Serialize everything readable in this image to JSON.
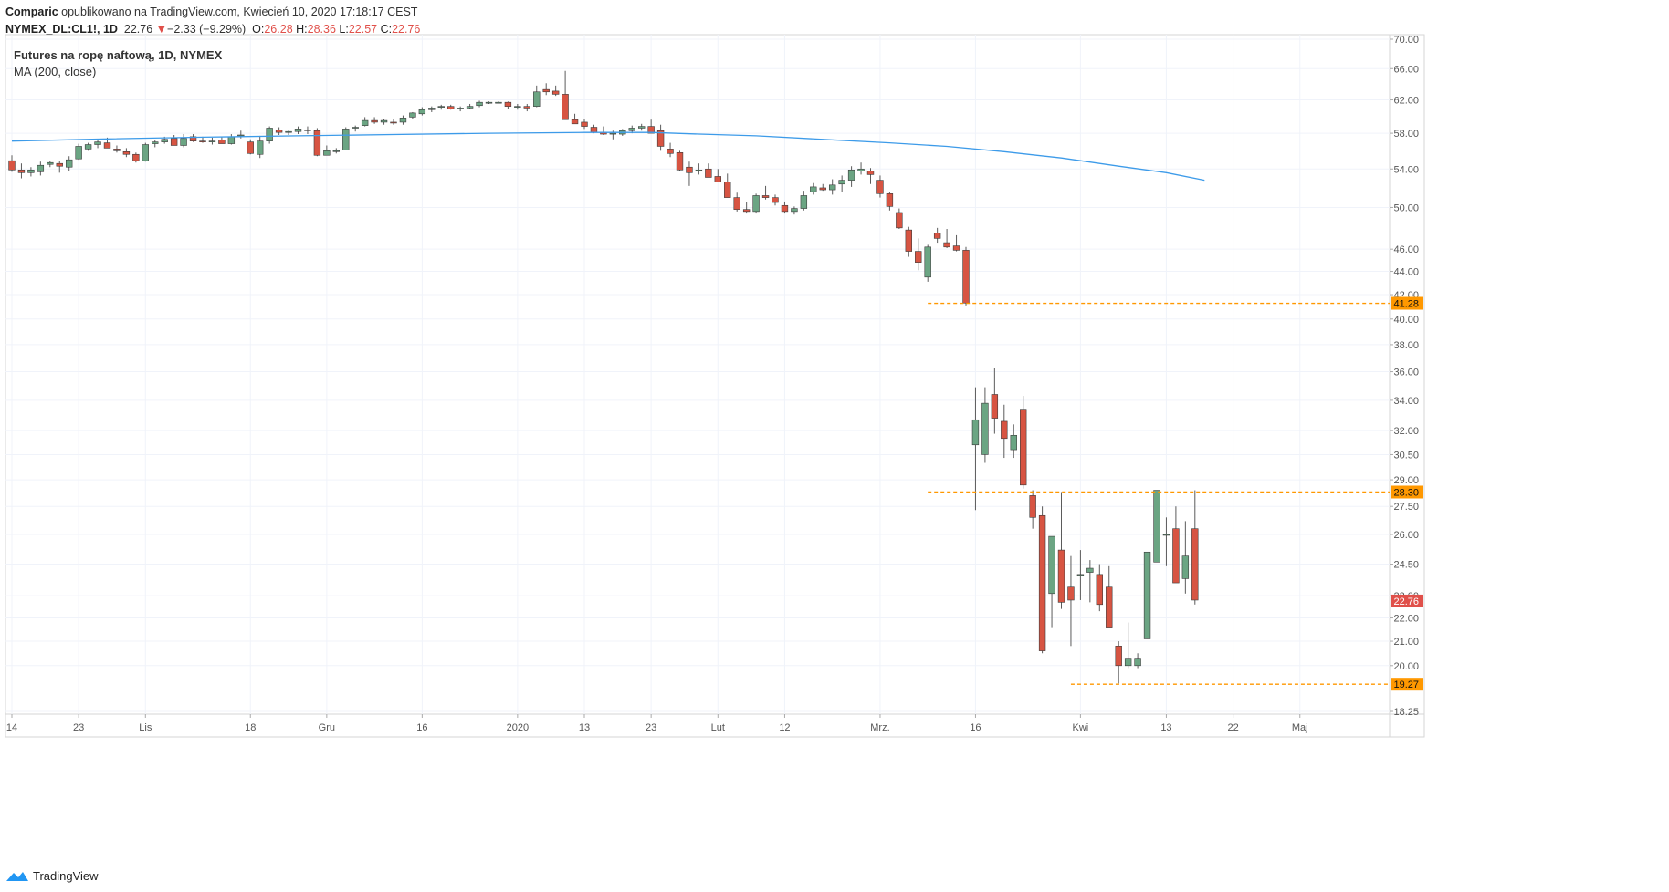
{
  "header": {
    "author": "Comparic",
    "published": "opublikowano na TradingView.com, Kwiecień 10, 2020 17:18:17 CEST",
    "symbol": "NYMEX_DL:CL1!, 1D",
    "last": "22.76",
    "down_arrow": "▼",
    "change": "−2.33 (−9.29%)",
    "o_label": "O:",
    "o_value": "26.28",
    "h_label": "H:",
    "h_value": "28.36",
    "l_label": "L:",
    "l_value": "22.57",
    "c_label": "C:",
    "c_value": "22.76"
  },
  "legend": {
    "title": "Futures na ropę naftową, 1D, NYMEX",
    "indicator": "MA (200, close)"
  },
  "footer": {
    "brand": "TradingView",
    "logo_icon": "tradingview-logo-icon"
  },
  "colors": {
    "up": "#6ba583",
    "down": "#d75442",
    "ma": "#3d9be9",
    "level": "#ff9800",
    "grid": "#f0f3fa",
    "axis_text": "#555555"
  },
  "chart_data": {
    "type": "candlestick",
    "title": "Futures na ropę naftową, 1D, NYMEX",
    "y_scale": "log",
    "ylim": [
      18.25,
      70.0
    ],
    "y_ticks": [
      "70.00",
      "66.00",
      "62.00",
      "58.00",
      "54.00",
      "50.00",
      "46.00",
      "44.00",
      "42.00",
      "40.00",
      "38.00",
      "36.00",
      "34.00",
      "32.00",
      "30.50",
      "29.00",
      "27.50",
      "26.00",
      "24.50",
      "23.00",
      "22.00",
      "21.00",
      "20.00",
      "18.25"
    ],
    "x_ticks": [
      "14",
      "23",
      "Lis",
      "18",
      "Gru",
      "16",
      "2020",
      "13",
      "23",
      "Lut",
      "12",
      "Mrz.",
      "16",
      "Kwi",
      "13",
      "22",
      "Maj"
    ],
    "x_tick_index": [
      0,
      7,
      14,
      25,
      33,
      43,
      53,
      60,
      67,
      74,
      81,
      91,
      101,
      112,
      121,
      128,
      135
    ],
    "grid": true,
    "price_labels": [
      {
        "value": 41.28,
        "text": "41.28",
        "kind": "level"
      },
      {
        "value": 28.3,
        "text": "28.30",
        "kind": "level"
      },
      {
        "value": 22.76,
        "text": "22.76",
        "kind": "last"
      },
      {
        "value": 19.27,
        "text": "19.27",
        "kind": "level"
      }
    ],
    "levels": [
      {
        "value": 41.28,
        "from": 96,
        "to": 138
      },
      {
        "value": 28.3,
        "from": 96,
        "to": 138
      },
      {
        "value": 19.27,
        "from": 111,
        "to": 138
      }
    ],
    "ohlc": [
      [
        54.9,
        55.5,
        53.7,
        53.9
      ],
      [
        53.9,
        54.6,
        53.0,
        53.6
      ],
      [
        53.6,
        54.2,
        53.2,
        53.9
      ],
      [
        53.7,
        54.8,
        53.3,
        54.4
      ],
      [
        54.5,
        54.9,
        54.2,
        54.7
      ],
      [
        54.6,
        54.9,
        53.6,
        54.3
      ],
      [
        54.2,
        55.4,
        53.8,
        55.0
      ],
      [
        55.1,
        56.8,
        55.0,
        56.5
      ],
      [
        56.2,
        56.9,
        56.0,
        56.7
      ],
      [
        56.7,
        57.3,
        56.3,
        57.0
      ],
      [
        56.9,
        57.5,
        56.4,
        56.3
      ],
      [
        56.2,
        56.6,
        55.8,
        56.0
      ],
      [
        55.9,
        56.3,
        55.3,
        55.6
      ],
      [
        55.6,
        55.8,
        54.7,
        54.9
      ],
      [
        54.9,
        56.9,
        54.8,
        56.7
      ],
      [
        56.8,
        57.2,
        56.4,
        57.0
      ],
      [
        57.0,
        57.6,
        56.8,
        57.3
      ],
      [
        57.4,
        57.8,
        56.9,
        56.6
      ],
      [
        56.6,
        57.9,
        56.4,
        57.4
      ],
      [
        57.6,
        57.9,
        57.0,
        57.1
      ],
      [
        57.1,
        57.6,
        56.9,
        57.0
      ],
      [
        57.0,
        57.5,
        56.7,
        57.1
      ],
      [
        57.2,
        57.6,
        56.9,
        56.8
      ],
      [
        56.8,
        57.9,
        56.7,
        57.6
      ],
      [
        57.7,
        58.3,
        57.4,
        57.8
      ],
      [
        57.0,
        57.3,
        55.6,
        55.7
      ],
      [
        55.6,
        57.7,
        55.2,
        57.1
      ],
      [
        57.1,
        58.8,
        56.8,
        58.6
      ],
      [
        58.4,
        58.7,
        57.8,
        58.1
      ],
      [
        58.1,
        58.3,
        57.8,
        58.2
      ],
      [
        58.2,
        58.8,
        57.9,
        58.5
      ],
      [
        58.4,
        58.8,
        57.9,
        58.3
      ],
      [
        58.3,
        58.6,
        55.4,
        55.5
      ],
      [
        55.5,
        56.6,
        55.5,
        56.0
      ],
      [
        56.0,
        56.3,
        55.7,
        56.0
      ],
      [
        56.1,
        58.7,
        56.1,
        58.5
      ],
      [
        58.6,
        58.9,
        58.2,
        58.7
      ],
      [
        58.9,
        59.9,
        58.8,
        59.5
      ],
      [
        59.5,
        59.9,
        59.1,
        59.3
      ],
      [
        59.3,
        59.7,
        59.0,
        59.5
      ],
      [
        59.3,
        59.7,
        59.0,
        59.2
      ],
      [
        59.3,
        60.1,
        59.0,
        59.8
      ],
      [
        59.9,
        60.5,
        59.7,
        60.4
      ],
      [
        60.3,
        61.1,
        60.1,
        60.8
      ],
      [
        60.8,
        61.2,
        60.5,
        61.0
      ],
      [
        61.1,
        61.4,
        60.8,
        61.2
      ],
      [
        61.2,
        61.4,
        60.8,
        60.9
      ],
      [
        60.9,
        61.2,
        60.6,
        61.0
      ],
      [
        61.0,
        61.5,
        60.9,
        61.2
      ],
      [
        61.3,
        61.9,
        61.1,
        61.7
      ],
      [
        61.7,
        61.8,
        61.5,
        61.7
      ],
      [
        61.7,
        61.8,
        61.6,
        61.7
      ],
      [
        61.7,
        61.8,
        60.9,
        61.2
      ],
      [
        61.1,
        61.5,
        60.8,
        61.2
      ],
      [
        61.2,
        61.5,
        60.6,
        61.0
      ],
      [
        61.2,
        63.8,
        61.1,
        63.0
      ],
      [
        63.3,
        64.1,
        62.6,
        63.0
      ],
      [
        63.1,
        63.8,
        62.5,
        62.7
      ],
      [
        62.7,
        65.7,
        59.6,
        59.6
      ],
      [
        59.6,
        60.3,
        59.2,
        59.1
      ],
      [
        59.3,
        59.7,
        58.5,
        58.8
      ],
      [
        58.7,
        59.0,
        58.0,
        58.1
      ],
      [
        58.1,
        58.8,
        57.8,
        57.9
      ],
      [
        57.9,
        58.3,
        57.3,
        58.0
      ],
      [
        57.9,
        58.5,
        57.7,
        58.3
      ],
      [
        58.3,
        58.9,
        58.0,
        58.6
      ],
      [
        58.6,
        59.1,
        58.3,
        58.8
      ],
      [
        58.8,
        59.6,
        58.1,
        58.0
      ],
      [
        58.3,
        59.0,
        56.0,
        56.5
      ],
      [
        56.2,
        56.9,
        55.3,
        55.7
      ],
      [
        55.8,
        56.0,
        53.8,
        53.9
      ],
      [
        54.2,
        54.8,
        52.2,
        53.6
      ],
      [
        53.8,
        54.6,
        53.4,
        53.9
      ],
      [
        54.0,
        54.6,
        53.2,
        53.1
      ],
      [
        53.2,
        54.0,
        52.7,
        52.6
      ],
      [
        52.6,
        53.5,
        51.0,
        51.0
      ],
      [
        51.0,
        51.5,
        49.6,
        49.8
      ],
      [
        49.8,
        50.5,
        49.4,
        49.6
      ],
      [
        49.6,
        51.4,
        49.4,
        51.2
      ],
      [
        51.2,
        52.2,
        50.8,
        51.0
      ],
      [
        51.0,
        51.3,
        50.2,
        50.5
      ],
      [
        50.2,
        50.6,
        49.4,
        49.6
      ],
      [
        49.6,
        50.1,
        49.3,
        49.9
      ],
      [
        49.9,
        51.7,
        49.7,
        51.2
      ],
      [
        51.6,
        52.5,
        51.3,
        52.1
      ],
      [
        52.0,
        52.4,
        51.7,
        51.8
      ],
      [
        51.8,
        52.9,
        51.3,
        52.3
      ],
      [
        52.4,
        53.3,
        51.6,
        52.8
      ],
      [
        52.8,
        54.3,
        52.1,
        53.9
      ],
      [
        53.8,
        54.7,
        53.4,
        54.0
      ],
      [
        53.8,
        54.1,
        52.4,
        53.4
      ],
      [
        52.8,
        53.3,
        51.0,
        51.4
      ],
      [
        51.4,
        51.6,
        49.7,
        50.1
      ],
      [
        49.5,
        49.9,
        47.9,
        48.0
      ],
      [
        47.8,
        48.1,
        45.3,
        45.8
      ],
      [
        45.8,
        47.0,
        44.1,
        44.8
      ],
      [
        43.5,
        46.4,
        43.1,
        46.2
      ],
      [
        47.5,
        48.0,
        46.6,
        47.0
      ],
      [
        46.6,
        47.9,
        46.1,
        46.2
      ],
      [
        46.3,
        47.3,
        45.8,
        45.9
      ],
      [
        45.9,
        46.2,
        41.1,
        41.3
      ],
      [
        31.1,
        34.9,
        27.3,
        32.7
      ],
      [
        30.5,
        34.9,
        30.0,
        33.8
      ],
      [
        34.4,
        36.3,
        31.8,
        32.8
      ],
      [
        32.6,
        33.7,
        30.3,
        31.5
      ],
      [
        30.8,
        32.4,
        30.3,
        31.7
      ],
      [
        33.4,
        34.3,
        28.5,
        28.7
      ],
      [
        28.1,
        28.4,
        26.3,
        26.9
      ],
      [
        27.0,
        27.5,
        20.5,
        20.6
      ],
      [
        23.1,
        25.6,
        21.6,
        25.9
      ],
      [
        25.2,
        28.3,
        22.4,
        22.7
      ],
      [
        23.4,
        24.9,
        20.8,
        22.8
      ],
      [
        24.0,
        25.2,
        22.8,
        24.0
      ],
      [
        24.1,
        24.7,
        22.7,
        24.3
      ],
      [
        24.0,
        24.5,
        22.3,
        22.6
      ],
      [
        23.4,
        24.4,
        21.7,
        21.6
      ],
      [
        20.8,
        21.0,
        19.3,
        20.0
      ],
      [
        20.0,
        21.8,
        19.9,
        20.3
      ],
      [
        20.0,
        20.5,
        19.9,
        20.3
      ],
      [
        21.1,
        24.9,
        21.1,
        25.1
      ],
      [
        24.6,
        28.4,
        24.6,
        28.4
      ],
      [
        26.0,
        26.9,
        24.4,
        26.0
      ],
      [
        26.3,
        27.5,
        23.9,
        23.6
      ],
      [
        23.8,
        26.7,
        23.1,
        24.9
      ],
      [
        26.3,
        28.4,
        22.6,
        22.8
      ]
    ],
    "series": [
      {
        "name": "MA (200, close)",
        "type": "line",
        "values": [
          [
            0,
            57.1
          ],
          [
            10,
            57.35
          ],
          [
            20,
            57.55
          ],
          [
            30,
            57.7
          ],
          [
            40,
            57.85
          ],
          [
            50,
            58.0
          ],
          [
            60,
            58.1
          ],
          [
            67,
            58.1
          ],
          [
            72,
            57.9
          ],
          [
            78,
            57.7
          ],
          [
            85,
            57.3
          ],
          [
            92,
            56.9
          ],
          [
            98,
            56.5
          ],
          [
            104,
            55.9
          ],
          [
            110,
            55.2
          ],
          [
            116,
            54.3
          ],
          [
            121,
            53.6
          ],
          [
            125,
            52.8
          ]
        ]
      }
    ]
  }
}
